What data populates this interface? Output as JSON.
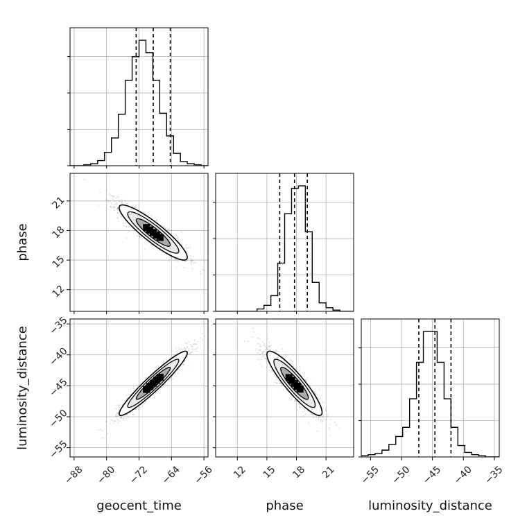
{
  "chart_data": {
    "type": "corner",
    "parameters": [
      "geocent_time",
      "phase",
      "luminosity_distance"
    ],
    "labels": {
      "x": [
        "geocent_time",
        "phase",
        "luminosity_distance"
      ],
      "y": [
        "",
        "phase",
        "luminosity_distance"
      ]
    },
    "ranges": {
      "geocent_time": [
        -89,
        -55
      ],
      "phase": [
        9.8,
        23.8
      ],
      "luminosity_distance": [
        -56.5,
        -34.2
      ]
    },
    "ticks": {
      "geocent_time": [
        "−88",
        "−80",
        "−72",
        "−64",
        "−56"
      ],
      "phase": [
        "12",
        "15",
        "18",
        "21"
      ],
      "luminosity_distance": [
        "−55",
        "−50",
        "−45",
        "−40",
        "−35"
      ]
    },
    "tick_values": {
      "geocent_time": [
        -88,
        -80,
        -72,
        -64,
        -56
      ],
      "phase": [
        12,
        15,
        18,
        21
      ],
      "luminosity_distance": [
        -55,
        -50,
        -45,
        -40,
        -35
      ]
    },
    "grid": true,
    "histograms": {
      "geocent_time": {
        "bin_edges_start": -89,
        "bin_width": 1.7,
        "counts": [
          0,
          0,
          1,
          2,
          5,
          13,
          27,
          50,
          83,
          106,
          122,
          110,
          83,
          51,
          29,
          12,
          4,
          2,
          1,
          0
        ],
        "quantiles": [
          -72.7,
          -68.5,
          -64.3
        ]
      },
      "phase": {
        "bin_edges_start": 9.8,
        "bin_width": 0.7,
        "counts": [
          0,
          0,
          0,
          0,
          0,
          0,
          2,
          5,
          13,
          40,
          81,
          102,
          104,
          66,
          24,
          7,
          3,
          1,
          0,
          0
        ],
        "quantiles": [
          16.3,
          17.8,
          19.1
        ]
      },
      "luminosity_distance": {
        "bin_edges_start": -56.5,
        "bin_width": 1.115,
        "counts": [
          1,
          2,
          3,
          6,
          11,
          18,
          26,
          51,
          83,
          110,
          110,
          83,
          51,
          26,
          10,
          4,
          2,
          1,
          0,
          0
        ],
        "quantiles": [
          -47.2,
          -44.6,
          -42.0
        ]
      }
    },
    "correlations": {
      "phase|geocent_time": -0.9,
      "luminosity_distance|geocent_time": 0.95,
      "luminosity_distance|phase": -0.9
    },
    "sigma": {
      "geocent_time": 4.2,
      "phase": 1.4,
      "luminosity_distance": 2.6
    },
    "mean": {
      "geocent_time": -68.5,
      "phase": 17.8,
      "luminosity_distance": -44.6
    },
    "contour_levels_sigma": [
      0.5,
      1.0,
      1.5,
      2.0
    ]
  }
}
